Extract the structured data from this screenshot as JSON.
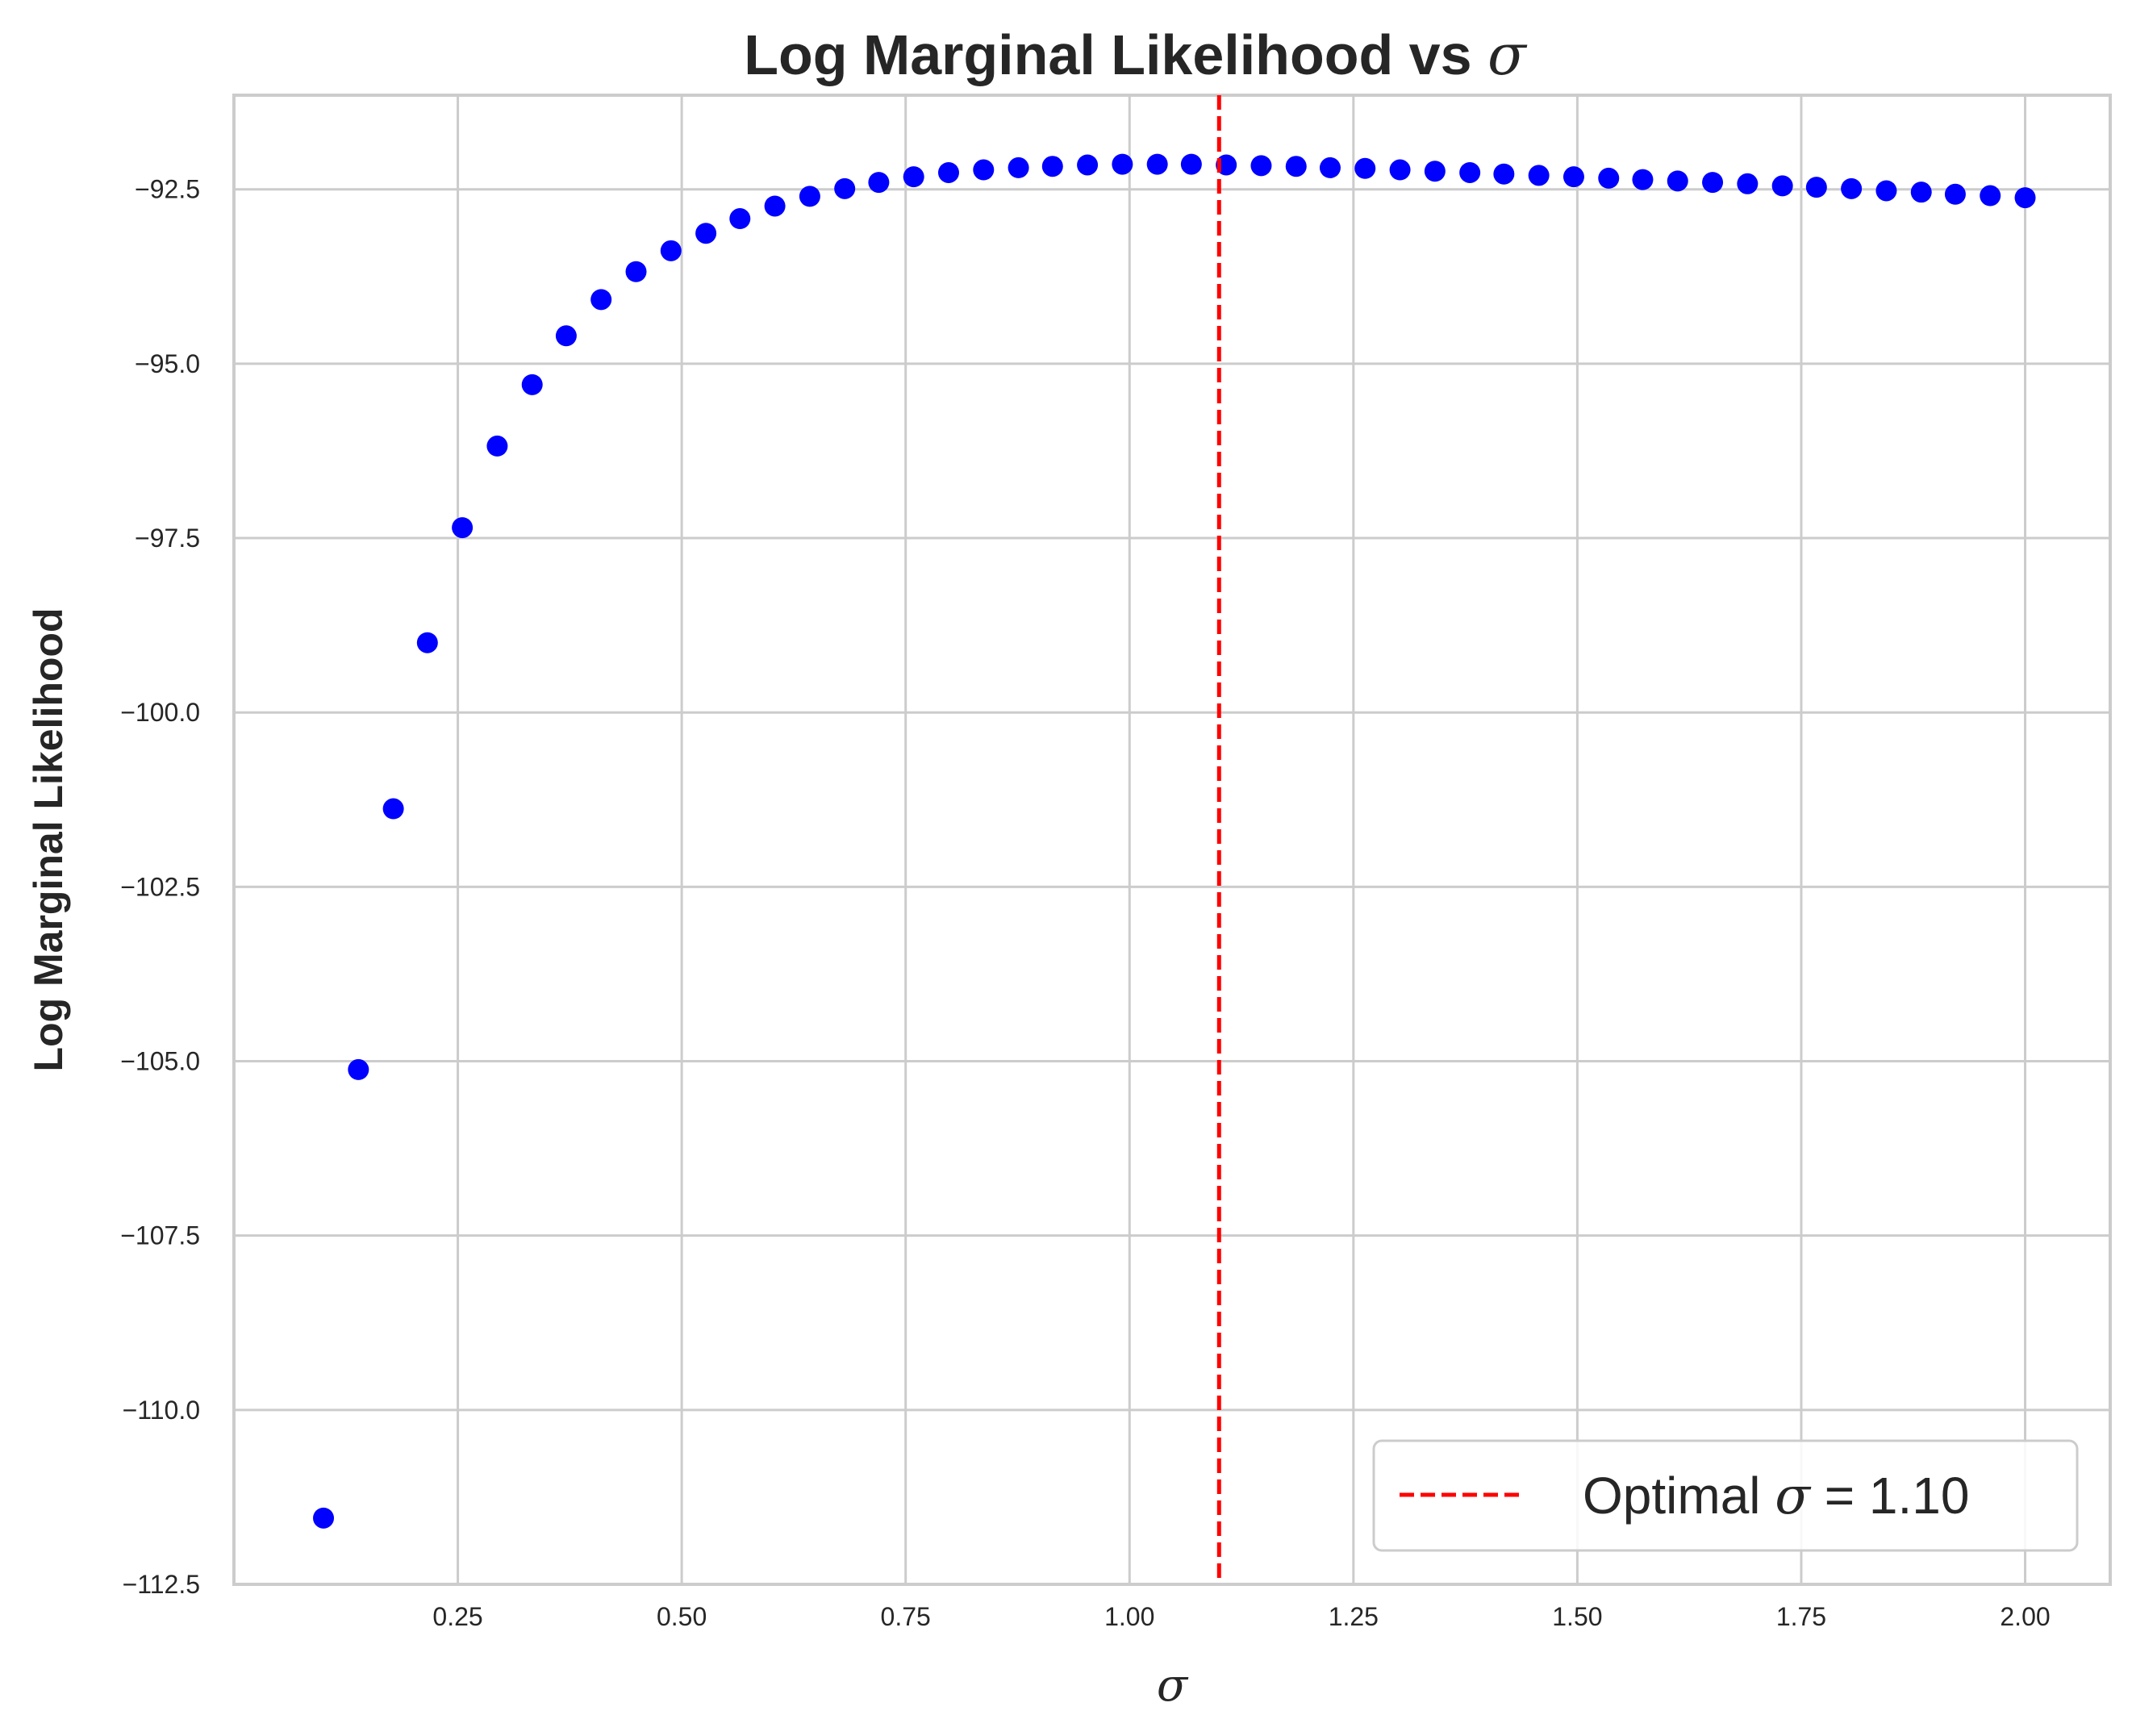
{
  "chart_data": {
    "type": "scatter",
    "title_text": "Log Marginal Likelihood vs ",
    "title_symbol": "σ",
    "xlabel": "σ",
    "ylabel": "Log Marginal Likelihood",
    "xlim": [
      0.0,
      2.095
    ],
    "ylim": [
      -112.5,
      -91.15
    ],
    "xticks": [
      0.25,
      0.5,
      0.75,
      1.0,
      1.25,
      1.5,
      1.75,
      2.0
    ],
    "xtick_labels": [
      "0.25",
      "0.50",
      "0.75",
      "1.00",
      "1.25",
      "1.50",
      "1.75",
      "2.00"
    ],
    "yticks": [
      -112.5,
      -110.0,
      -107.5,
      -105.0,
      -102.5,
      -100.0,
      -97.5,
      -95.0,
      -92.5
    ],
    "ytick_labels": [
      "−112.5",
      "−110.0",
      "−107.5",
      "−105.0",
      "−102.5",
      "−100.0",
      "−97.5",
      "−95.0",
      "−92.5"
    ],
    "grid": true,
    "legend_position": "bottom-right",
    "series": [
      {
        "color": "#0000ff",
        "x": [
          0.1,
          0.139,
          0.178,
          0.216,
          0.255,
          0.294,
          0.333,
          0.371,
          0.41,
          0.449,
          0.488,
          0.527,
          0.565,
          0.604,
          0.643,
          0.682,
          0.72,
          0.759,
          0.798,
          0.837,
          0.876,
          0.914,
          0.953,
          0.992,
          1.031,
          1.069,
          1.108,
          1.147,
          1.186,
          1.224,
          1.263,
          1.302,
          1.341,
          1.38,
          1.418,
          1.457,
          1.496,
          1.535,
          1.573,
          1.612,
          1.651,
          1.69,
          1.729,
          1.767,
          1.806,
          1.845,
          1.884,
          1.922,
          1.961,
          2.0
        ],
        "y": [
          -111.55,
          -105.12,
          -101.38,
          -99.0,
          -97.35,
          -96.18,
          -95.3,
          -94.6,
          -94.08,
          -93.68,
          -93.38,
          -93.13,
          -92.92,
          -92.74,
          -92.6,
          -92.49,
          -92.4,
          -92.32,
          -92.26,
          -92.22,
          -92.19,
          -92.17,
          -92.15,
          -92.14,
          -92.14,
          -92.14,
          -92.15,
          -92.16,
          -92.17,
          -92.19,
          -92.2,
          -92.22,
          -92.24,
          -92.26,
          -92.28,
          -92.3,
          -92.32,
          -92.34,
          -92.36,
          -92.38,
          -92.4,
          -92.42,
          -92.45,
          -92.47,
          -92.49,
          -92.52,
          -92.54,
          -92.57,
          -92.59,
          -92.62
        ]
      }
    ],
    "vline": {
      "x": 1.1,
      "color": "#ff0000",
      "label_text": "Optimal ",
      "label_symbol": "σ",
      "label_value": " = 1.10"
    }
  }
}
